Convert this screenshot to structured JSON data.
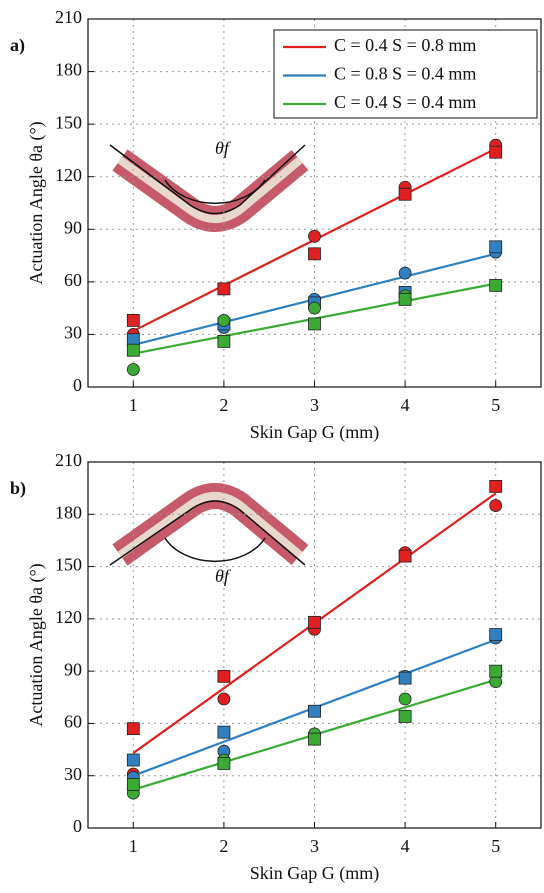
{
  "chart_data": [
    {
      "type": "scatter",
      "panel_label": "a)",
      "annotation": "θf",
      "x_label": "Skin Gap G (mm)",
      "y_label": "Actuation Angle θa (°)",
      "x": [
        1,
        2,
        3,
        4,
        5
      ],
      "xlim": [
        0.5,
        5.5
      ],
      "xticks": [
        1,
        2,
        3,
        4,
        5
      ],
      "ylim": [
        0,
        210
      ],
      "yticks": [
        0,
        30,
        60,
        90,
        120,
        150,
        180,
        210
      ],
      "grid": true,
      "legend": "upper right",
      "series": [
        {
          "name": "C = 0.4 S = 0.8 mm",
          "color": "#e02020",
          "values": [
            38,
            56,
            76,
            110,
            134
          ],
          "values_circle": [
            30,
            56,
            86,
            114,
            138
          ],
          "fit": [
            32,
            136
          ]
        },
        {
          "name": "C = 0.8 S = 0.4 mm",
          "color": "#2f7fc1",
          "values": [
            27,
            36,
            48,
            54,
            80
          ],
          "values_circle": [
            25,
            34,
            50,
            65,
            77
          ],
          "fit": [
            24,
            76
          ]
        },
        {
          "name": "C = 0.4 S = 0.4 mm",
          "color": "#3aaa35",
          "values": [
            21,
            26,
            36,
            50,
            58
          ],
          "values_circle": [
            10,
            38,
            45,
            52,
            58
          ],
          "fit": [
            19,
            59
          ]
        }
      ]
    },
    {
      "type": "scatter",
      "panel_label": "b)",
      "annotation": "θf",
      "x_label": "Skin Gap G (mm)",
      "y_label": "Actuation Angle θa (°)",
      "x": [
        1,
        2,
        3,
        4,
        5
      ],
      "xlim": [
        0.5,
        5.5
      ],
      "xticks": [
        1,
        2,
        3,
        4,
        5
      ],
      "ylim": [
        0,
        210
      ],
      "yticks": [
        0,
        30,
        60,
        90,
        120,
        150,
        180,
        210
      ],
      "grid": true,
      "series": [
        {
          "color": "#e02020",
          "values": [
            57,
            87,
            118,
            156,
            196
          ],
          "values_circle": [
            31,
            74,
            114,
            158,
            185
          ],
          "fit": [
            43,
            192
          ]
        },
        {
          "color": "#2f7fc1",
          "values": [
            39,
            55,
            67,
            86,
            111
          ],
          "values_circle": [
            29,
            44,
            67,
            87,
            109
          ],
          "fit": [
            30,
            108
          ]
        },
        {
          "color": "#3aaa35",
          "values": [
            25,
            37,
            51,
            64,
            90
          ],
          "values_circle": [
            20,
            39,
            54,
            74,
            84
          ],
          "fit": [
            22,
            85
          ]
        }
      ]
    }
  ]
}
